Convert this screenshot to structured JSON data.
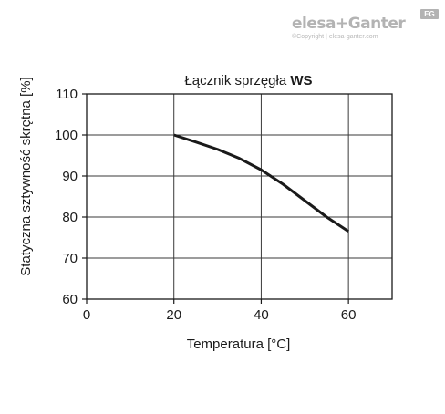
{
  "logo": {
    "brand": "elesa+Ganter",
    "badge": "EG",
    "copyright": "©Copyright | elesa-ganter.com"
  },
  "chart_data": {
    "type": "line",
    "title_prefix": "Łącznik sprzęgła ",
    "title_bold": "WS",
    "xlabel": "Temperatura [°C]",
    "ylabel": "Statyczna sztywność skrętna [%]",
    "xlim": [
      0,
      70
    ],
    "ylim": [
      60,
      110
    ],
    "xticks": [
      0,
      20,
      40,
      60
    ],
    "yticks": [
      60,
      70,
      80,
      90,
      100,
      110
    ],
    "x_gridlines": [
      20,
      40,
      60
    ],
    "y_gridlines": [
      70,
      80,
      90,
      100
    ],
    "grid": true,
    "series": [
      {
        "x": [
          20,
          25,
          30,
          35,
          40,
          45,
          50,
          55,
          60
        ],
        "y": [
          100,
          98.3,
          96.5,
          94.3,
          91.5,
          88,
          84,
          80,
          76.5
        ],
        "color": "#1a1a1a"
      }
    ]
  }
}
